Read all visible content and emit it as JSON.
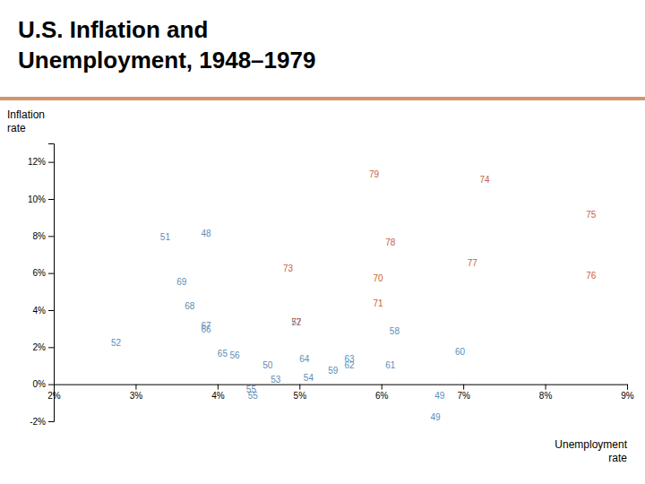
{
  "chart_data": {
    "type": "scatter",
    "title": "U.S. Inflation and\nUnemployment, 1948–1979",
    "x_label": "Unemployment\nrate",
    "y_label": "Inflation\nrate",
    "series": [
      {
        "color": "#5b8db8",
        "x": [
          3.8,
          6.6,
          4.55,
          3.3,
          2.7,
          4.65,
          5.05,
          4.35,
          4.15,
          4.9,
          6.1,
          5.35,
          6.9,
          6.05,
          5.55,
          5.55,
          5.0,
          4.0,
          3.8,
          3.8,
          3.6,
          3.5
        ],
        "values": [
          8.1,
          -1.8,
          1.0,
          7.9,
          2.2,
          0.2,
          0.3,
          -0.3,
          1.5,
          3.3,
          2.8,
          0.7,
          1.7,
          1.0,
          1.0,
          1.3,
          1.3,
          1.6,
          2.9,
          3.1,
          4.2,
          5.5
        ],
        "labels": [
          "48",
          "49",
          "50",
          "51",
          "52",
          "53",
          "54",
          "55",
          "56",
          "57",
          "58",
          "59",
          "60",
          "61",
          "62",
          "63",
          "64",
          "65",
          "66",
          "67",
          "68",
          "69"
        ]
      },
      {
        "color": "#c8623a",
        "x": [
          5.9,
          5.9,
          4.9,
          4.8,
          7.2,
          8.5,
          8.5,
          7.05,
          6.05,
          5.85
        ],
        "values": [
          5.7,
          4.3,
          3.3,
          6.2,
          11.0,
          9.1,
          5.8,
          6.5,
          7.6,
          11.3
        ],
        "labels": [
          "70",
          "71",
          "72",
          "73",
          "74",
          "75",
          "76",
          "77",
          "78",
          "79"
        ]
      }
    ],
    "annotations": [
      {
        "text": "55",
        "x": 4.37,
        "y": -0.45,
        "color": "#5b8db8"
      },
      {
        "text": "49",
        "x": 6.65,
        "y": -0.45,
        "color": "#5b8db8"
      }
    ],
    "xlim": [
      2.0,
      9.0
    ],
    "ylim": [
      -2.0,
      13.0
    ],
    "xticks": [
      {
        "value": 2,
        "label": "2%"
      },
      {
        "value": 3,
        "label": "3%"
      },
      {
        "value": 4,
        "label": "4%"
      },
      {
        "value": 5,
        "label": "5%"
      },
      {
        "value": 6,
        "label": "6%"
      },
      {
        "value": 7,
        "label": "7%"
      },
      {
        "value": 8,
        "label": "8%"
      },
      {
        "value": 9,
        "label": "9%"
      }
    ],
    "yticks": [
      {
        "value": -2,
        "label": "-2%"
      },
      {
        "value": 0,
        "label": "0%"
      },
      {
        "value": 2,
        "label": "2%"
      },
      {
        "value": 4,
        "label": "4%"
      },
      {
        "value": 6,
        "label": "6%"
      },
      {
        "value": 8,
        "label": "8%"
      },
      {
        "value": 10,
        "label": "10%"
      },
      {
        "value": 12,
        "label": "12%"
      }
    ],
    "grid": false
  }
}
